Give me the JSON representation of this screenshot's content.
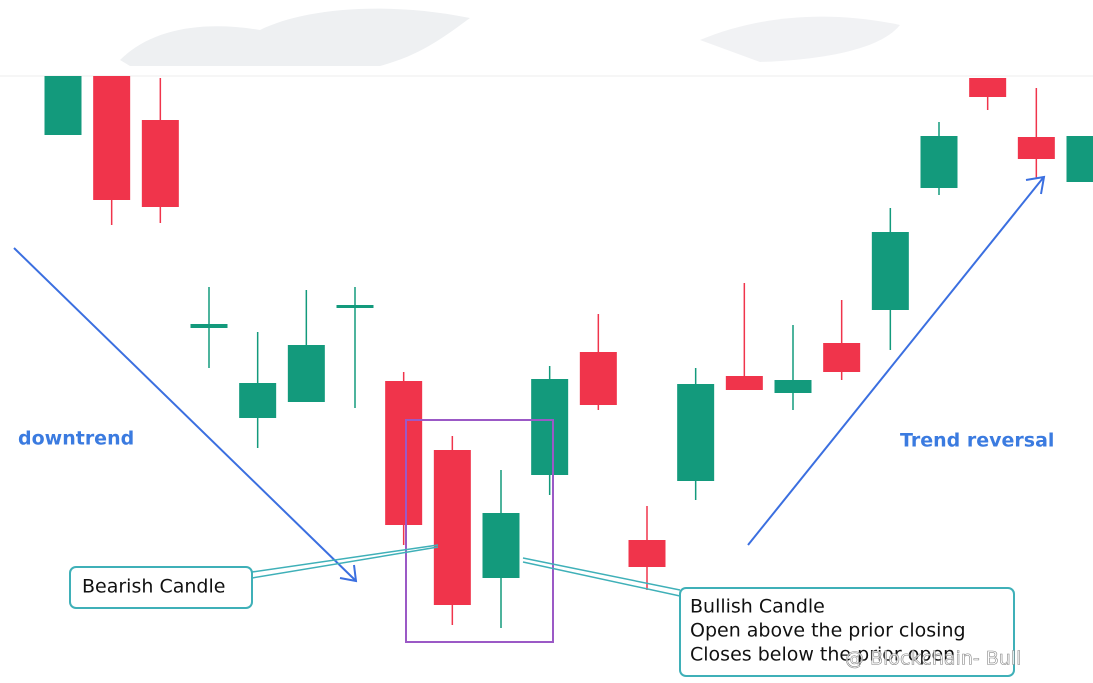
{
  "chart_data": {
    "type": "candlestick",
    "up_color": "#139a7c",
    "down_color": "#f0344b",
    "ylim": [
      0,
      683
    ],
    "open": [
      548,
      608,
      563,
      355,
      265,
      281,
      375,
      302,
      233,
      105,
      208,
      331,
      143,
      202,
      307,
      290,
      340,
      373,
      495,
      605,
      546,
      501
    ],
    "high": [
      608,
      608,
      605,
      396,
      351,
      393,
      396,
      311,
      247,
      213,
      317,
      369,
      177,
      315,
      400,
      358,
      383,
      475,
      561,
      605,
      595,
      547
    ],
    "low": [
      548,
      458,
      460,
      315,
      235,
      281,
      275,
      138,
      58,
      55,
      188,
      273,
      93,
      183,
      293,
      273,
      303,
      333,
      488,
      573,
      505,
      501
    ],
    "close": [
      608,
      483,
      476,
      359,
      300,
      338,
      378,
      158,
      78,
      170,
      304,
      278,
      116,
      299,
      293,
      303,
      311,
      451,
      547,
      586,
      524,
      547
    ],
    "annotations": {
      "downtrend": "downtrend",
      "reversal": "Trend reversal",
      "bearish": "Bearish Candle",
      "bullish": [
        "Bullish Candle",
        "Open above the prior closing",
        "Closes below the prior open"
      ],
      "watermark": "@ Blockchain- Bull"
    }
  }
}
